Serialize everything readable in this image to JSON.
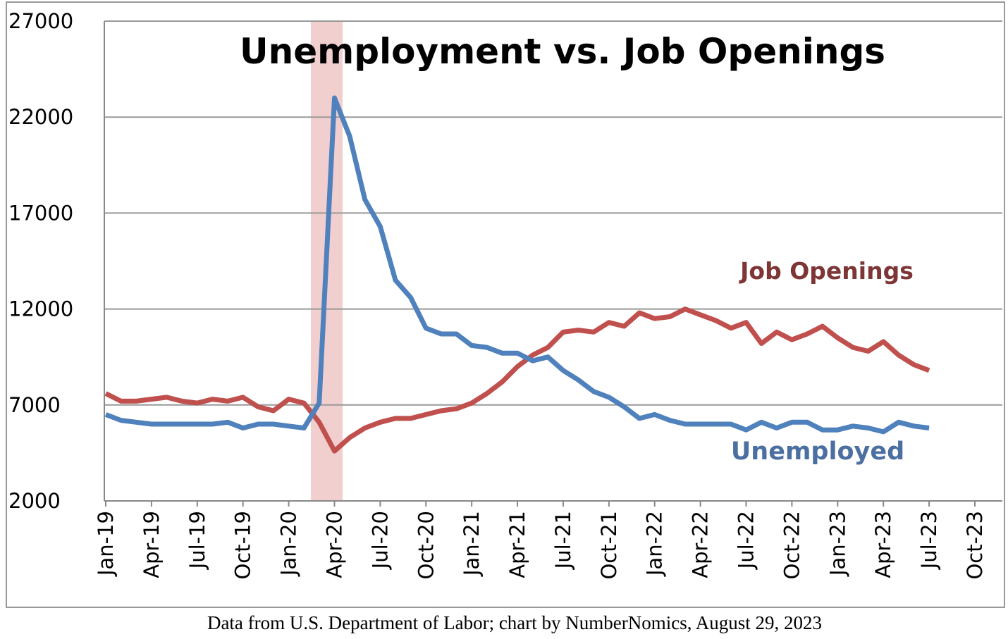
{
  "chart_data": {
    "type": "line",
    "title": "Unemployment vs. Job Openings",
    "caption": "Data from U.S. Department of Labor; chart by NumberNomics, August 29, 2023",
    "annotations": [
      "Job Openings",
      "Unemployed"
    ],
    "categories": [
      "Jan-19",
      null,
      null,
      "Apr-19",
      null,
      null,
      "Jul-19",
      null,
      null,
      "Oct-19",
      null,
      null,
      "Jan-20",
      null,
      null,
      "Apr-20",
      null,
      null,
      "Jul-20",
      null,
      null,
      "Oct-20",
      null,
      null,
      "Jan-21",
      null,
      null,
      "Apr-21",
      null,
      null,
      "Jul-21",
      null,
      null,
      "Oct-21",
      null,
      null,
      "Jan-22",
      null,
      null,
      "Apr-22",
      null,
      null,
      "Jul-22",
      null,
      null,
      "Oct-22",
      null,
      null,
      "Jan-23",
      null,
      null,
      "Apr-23",
      null,
      null,
      "Jul-23",
      null,
      null,
      "Oct-23"
    ],
    "series": [
      {
        "name": "Unemployed",
        "color": "#4f81bd",
        "values": [
          6500,
          6200,
          6100,
          6000,
          6000,
          6000,
          6000,
          6000,
          6100,
          5800,
          6000,
          6000,
          5900,
          5800,
          7100,
          23000,
          21000,
          17700,
          16300,
          13500,
          12600,
          11000,
          10700,
          10700,
          10100,
          10000,
          9700,
          9700,
          9300,
          9500,
          8800,
          8300,
          7700,
          7400,
          6900,
          6300,
          6500,
          6200,
          6000,
          6000,
          6000,
          6000,
          5700,
          6100,
          5800,
          6100,
          6100,
          5700,
          5700,
          5900,
          5800,
          5600,
          6100,
          5900,
          5800,
          null,
          null,
          null
        ]
      },
      {
        "name": "Job Openings",
        "color": "#c0504d",
        "values": [
          7600,
          7200,
          7200,
          7300,
          7400,
          7200,
          7100,
          7300,
          7200,
          7400,
          6900,
          6700,
          7300,
          7100,
          6100,
          4600,
          5300,
          5800,
          6100,
          6300,
          6300,
          6500,
          6700,
          6800,
          7100,
          7600,
          8200,
          9000,
          9600,
          10000,
          10800,
          10900,
          10800,
          11300,
          11100,
          11800,
          11500,
          11600,
          12000,
          11700,
          11400,
          11000,
          11300,
          10200,
          10800,
          10400,
          10700,
          11100,
          10500,
          10000,
          9800,
          10300,
          9600,
          9100,
          8800,
          null,
          null,
          null
        ]
      }
    ],
    "ylim": [
      2000,
      27000
    ],
    "yticks": [
      2000,
      7000,
      12000,
      17000,
      22000,
      27000
    ],
    "grid": true
  }
}
